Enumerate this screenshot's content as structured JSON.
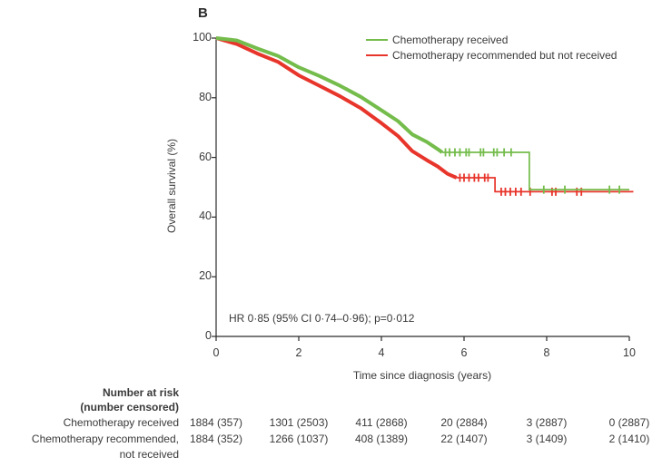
{
  "ui_colors": {
    "green": "#74BC4B",
    "red": "#E8352B",
    "axis": "#2b2b2b",
    "text": "#3a3a3a"
  },
  "chart_data": {
    "type": "line",
    "subtype": "kaplan-meier-survival",
    "title": "B",
    "xlabel": "Time since diagnosis (years)",
    "ylabel": "Overall survival (%)",
    "xlim": [
      0,
      10
    ],
    "ylim": [
      0,
      100
    ],
    "xticks": [
      0,
      2,
      4,
      6,
      8,
      10
    ],
    "yticks": [
      0,
      20,
      40,
      60,
      80,
      100
    ],
    "grid": false,
    "legend_position": "top-right-inside",
    "annotation": "HR 0·85 (95% CI 0·74–0·96); p=0·012",
    "series": [
      {
        "name": "Chemotherapy recommended but not received",
        "color": "#E8352B",
        "points": [
          [
            0,
            100
          ],
          [
            0.5,
            98.0
          ],
          [
            1,
            94.8
          ],
          [
            1.5,
            92.0
          ],
          [
            2,
            87.5
          ],
          [
            2.5,
            84.0
          ],
          [
            3,
            80.5
          ],
          [
            3.5,
            76.5
          ],
          [
            4,
            71.5
          ],
          [
            4.4,
            67.2
          ],
          [
            4.75,
            62.1
          ],
          [
            5.1,
            59.1
          ],
          [
            5.36,
            57.0
          ],
          [
            5.6,
            54.5
          ],
          [
            5.82,
            53.2
          ],
          [
            6.75,
            53.2
          ],
          [
            6.75,
            48.5
          ],
          [
            10.1,
            48.5
          ]
        ],
        "censor_ticks": [
          5.9,
          6.0,
          6.12,
          6.25,
          6.35,
          6.5,
          6.58,
          6.9,
          7.0,
          7.12,
          7.25,
          7.38,
          7.6,
          8.13,
          8.22,
          8.73,
          8.84
        ],
        "thick_until": 5.82
      },
      {
        "name": "Chemotherapy received",
        "color": "#74BC4B",
        "points": [
          [
            0,
            100
          ],
          [
            0.5,
            99.2
          ],
          [
            1,
            96.5
          ],
          [
            1.5,
            94.0
          ],
          [
            2,
            90.2
          ],
          [
            2.5,
            87.3
          ],
          [
            3,
            84.0
          ],
          [
            3.5,
            80.3
          ],
          [
            4,
            75.8
          ],
          [
            4.4,
            72.2
          ],
          [
            4.75,
            67.7
          ],
          [
            5.1,
            65.2
          ],
          [
            5.36,
            62.8
          ],
          [
            5.47,
            61.7
          ],
          [
            7.58,
            61.7
          ],
          [
            7.58,
            49.2
          ],
          [
            10,
            49.2
          ]
        ],
        "censor_ticks": [
          5.55,
          5.65,
          5.78,
          5.9,
          6.05,
          6.12,
          6.4,
          6.47,
          6.72,
          6.8,
          6.97,
          7.14,
          7.93,
          8.44,
          9.52,
          9.76
        ],
        "thick_until": 5.47
      }
    ],
    "legend_order": [
      "Chemotherapy received",
      "Chemotherapy recommended but not received"
    ],
    "at_risk_table": {
      "header_line1": "Number at risk",
      "header_line2": "(number censored)",
      "times": [
        0,
        2,
        4,
        6,
        8,
        10
      ],
      "rows": [
        {
          "label_lines": [
            "Chemotherapy received"
          ],
          "values": [
            "1884 (357)",
            "1301 (2503)",
            "411 (2868)",
            "20 (2884)",
            "3 (2887)",
            "0 (2887)"
          ]
        },
        {
          "label_lines": [
            "Chemotherapy recommended,",
            "not received"
          ],
          "values": [
            "1884 (352)",
            "1266 (1037)",
            "408 (1389)",
            "22 (1407)",
            "3 (1409)",
            "2 (1410)"
          ]
        }
      ]
    }
  }
}
